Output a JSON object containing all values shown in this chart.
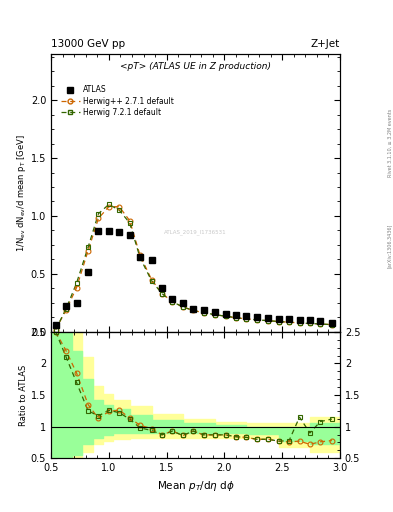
{
  "title_left": "13000 GeV pp",
  "title_right": "Z+Jet",
  "main_title": "<pT> (ATLAS UE in Z production)",
  "xlabel": "Mean $p_T$/d$\\eta$ d$\\phi$",
  "ylabel_main": "1/N$_{ev}$ dN$_{ev}$/d mean p$_T$ [GeV]",
  "ylabel_ratio": "Ratio to ATLAS",
  "watermark": "ATLAS_2019_I1736531",
  "side_text_top": "Rivet 3.1.10, ≥ 3.2M events",
  "side_text_bot": "[arXiv:1306.3436]",
  "xlim": [
    0.5,
    3.0
  ],
  "ylim_main": [
    0.0,
    2.4
  ],
  "ylim_ratio": [
    0.5,
    2.5
  ],
  "atlas_x": [
    0.54,
    0.63,
    0.72,
    0.82,
    0.91,
    1.0,
    1.09,
    1.18,
    1.27,
    1.37,
    1.46,
    1.55,
    1.64,
    1.73,
    1.82,
    1.92,
    2.01,
    2.1,
    2.19,
    2.28,
    2.38,
    2.47,
    2.56,
    2.65,
    2.74,
    2.83,
    2.93
  ],
  "atlas_y": [
    0.06,
    0.22,
    0.25,
    0.52,
    0.87,
    0.87,
    0.86,
    0.84,
    0.65,
    0.62,
    0.38,
    0.28,
    0.25,
    0.2,
    0.19,
    0.17,
    0.155,
    0.145,
    0.135,
    0.13,
    0.12,
    0.115,
    0.11,
    0.1,
    0.1,
    0.09,
    0.08
  ],
  "herwig1_x": [
    0.54,
    0.63,
    0.72,
    0.82,
    0.91,
    1.0,
    1.09,
    1.18,
    1.27,
    1.37,
    1.46,
    1.55,
    1.64,
    1.73,
    1.82,
    1.92,
    2.01,
    2.1,
    2.19,
    2.28,
    2.38,
    2.47,
    2.56,
    2.65,
    2.74,
    2.83,
    2.93
  ],
  "herwig1_y": [
    0.02,
    0.19,
    0.38,
    0.7,
    0.98,
    1.08,
    1.08,
    0.96,
    0.66,
    0.45,
    0.33,
    0.26,
    0.215,
    0.185,
    0.165,
    0.148,
    0.135,
    0.122,
    0.112,
    0.104,
    0.096,
    0.089,
    0.083,
    0.077,
    0.072,
    0.068,
    0.062
  ],
  "herwig2_x": [
    0.54,
    0.63,
    0.72,
    0.82,
    0.91,
    1.0,
    1.09,
    1.18,
    1.27,
    1.37,
    1.46,
    1.55,
    1.64,
    1.73,
    1.82,
    1.92,
    2.01,
    2.1,
    2.19,
    2.28,
    2.38,
    2.47,
    2.56,
    2.65,
    2.74,
    2.83,
    2.93
  ],
  "herwig2_y": [
    0.02,
    0.2,
    0.42,
    0.73,
    1.02,
    1.1,
    1.05,
    0.94,
    0.64,
    0.44,
    0.33,
    0.26,
    0.215,
    0.185,
    0.165,
    0.148,
    0.135,
    0.122,
    0.112,
    0.104,
    0.096,
    0.089,
    0.083,
    0.077,
    0.072,
    0.068,
    0.062
  ],
  "ratio_herwig1_y": [
    2.5,
    2.2,
    1.85,
    1.35,
    1.13,
    1.24,
    1.26,
    1.14,
    1.02,
    0.97,
    0.87,
    0.93,
    0.86,
    0.93,
    0.87,
    0.87,
    0.87,
    0.84,
    0.83,
    0.8,
    0.8,
    0.77,
    0.76,
    0.77,
    0.72,
    0.76,
    0.78
  ],
  "ratio_herwig2_y": [
    2.5,
    2.1,
    1.7,
    1.25,
    1.17,
    1.26,
    1.22,
    1.12,
    0.98,
    0.94,
    0.87,
    0.93,
    0.86,
    0.93,
    0.87,
    0.87,
    0.87,
    0.84,
    0.83,
    0.8,
    0.8,
    0.77,
    0.78,
    1.15,
    0.9,
    1.08,
    1.12
  ],
  "yellow_band_xedges": [
    0.5,
    0.59,
    0.68,
    0.77,
    0.86,
    0.95,
    1.04,
    1.18,
    1.37,
    1.64,
    1.92,
    2.19,
    2.47,
    2.74,
    3.0
  ],
  "yellow_band_lo": [
    0.4,
    0.4,
    0.45,
    0.6,
    0.72,
    0.77,
    0.8,
    0.82,
    0.82,
    0.82,
    0.82,
    0.82,
    0.68,
    0.6,
    0.6
  ],
  "yellow_band_hi": [
    2.5,
    2.5,
    2.5,
    2.1,
    1.65,
    1.52,
    1.42,
    1.32,
    1.2,
    1.12,
    1.08,
    1.05,
    1.05,
    1.15,
    1.2
  ],
  "green_band_xedges": [
    0.5,
    0.59,
    0.68,
    0.77,
    0.86,
    0.95,
    1.04,
    1.18,
    1.37,
    1.64,
    1.92,
    2.19,
    2.47,
    2.74,
    3.0
  ],
  "green_band_lo": [
    0.4,
    0.4,
    0.55,
    0.72,
    0.82,
    0.87,
    0.9,
    0.9,
    0.9,
    0.9,
    0.9,
    0.88,
    0.78,
    0.72,
    0.72
  ],
  "green_band_hi": [
    2.5,
    2.5,
    2.2,
    1.75,
    1.42,
    1.34,
    1.28,
    1.18,
    1.1,
    1.05,
    1.02,
    1.0,
    1.0,
    1.06,
    1.1
  ],
  "color_herwig1": "#cc6600",
  "color_herwig2": "#336600",
  "color_atlas": "#000000",
  "color_yellow": "#ffff99",
  "color_green": "#99ff99",
  "bg_color": "#ffffff"
}
